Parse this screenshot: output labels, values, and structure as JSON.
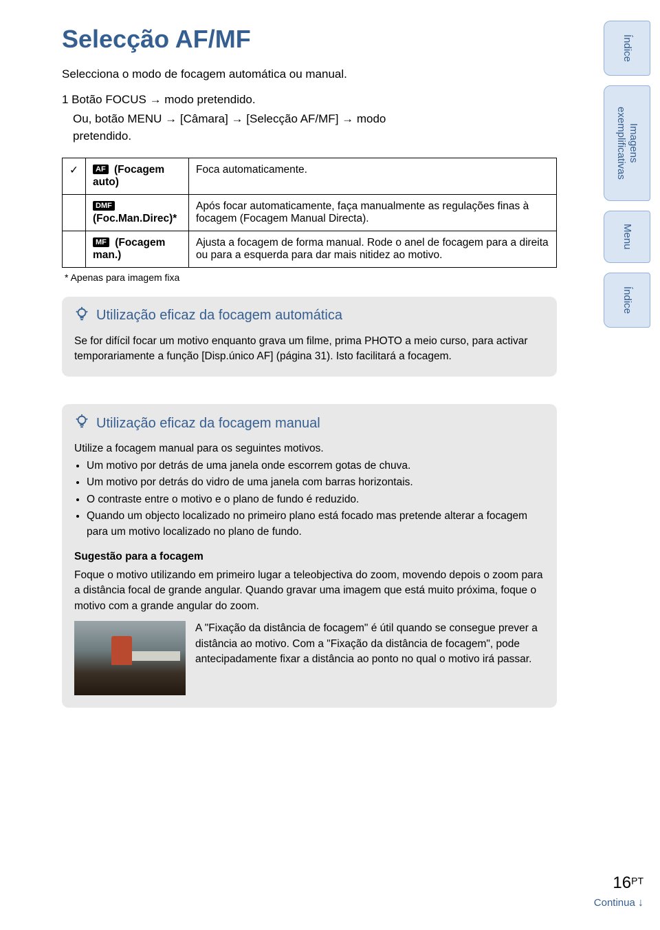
{
  "title": "Selecção AF/MF",
  "intro": "Selecciona o modo de focagem automática ou manual.",
  "step_line1_prefix": "1 Botão FOCUS ",
  "step_line1_suffix": " modo pretendido.",
  "step_line2_a": "Ou, botão MENU ",
  "step_line2_b": " [Câmara] ",
  "step_line2_c": " [Selecção AF/MF] ",
  "step_line2_d": " modo",
  "step_line3": "pretendido.",
  "arrow_glyph": "→",
  "check_glyph": "✓",
  "table": {
    "rows": [
      {
        "check": true,
        "badge": "AF",
        "mode": "(Focagem auto)",
        "desc": "Foca automaticamente."
      },
      {
        "check": false,
        "badge": "DMF",
        "mode": "(Foc.Man.Direc)*",
        "desc": "Após focar automaticamente, faça manualmente as regulações finas à focagem (Focagem Manual Directa)."
      },
      {
        "check": false,
        "badge": "MF",
        "mode": "(Focagem man.)",
        "desc": "Ajusta a focagem de forma manual. Rode o anel de focagem para a direita ou para a esquerda para dar mais nitidez ao motivo."
      }
    ]
  },
  "footnote": "*  Apenas para imagem fixa",
  "tip1": {
    "heading": "Utilização eficaz da focagem automática",
    "body": "Se for difícil focar um motivo enquanto grava um filme, prima PHOTO a meio curso, para activar temporariamente a função [Disp.único AF] (página 31). Isto facilitará a focagem."
  },
  "tip2": {
    "heading": "Utilização eficaz da focagem manual",
    "intro": "Utilize a focagem manual para os seguintes motivos.",
    "bullets": [
      "Um motivo por detrás de uma janela onde escorrem gotas de chuva.",
      "Um motivo por detrás do vidro de uma janela com barras horizontais.",
      "O contraste entre o motivo e o plano de fundo é reduzido.",
      "Quando um objecto localizado no primeiro plano está focado mas pretende alterar a focagem para um motivo localizado no plano de fundo."
    ],
    "sub_heading": "Sugestão para a focagem",
    "sub_body": "Foque o motivo utilizando em primeiro lugar a teleobjectiva do zoom, movendo depois o zoom para a distância focal de grande angular. Quando gravar uma imagem que está muito próxima, foque o motivo com a grande angular do zoom.",
    "img_caption": "A \"Fixação da distância de focagem\" é útil quando se consegue prever a distância ao motivo. Com a \"Fixação da distância de focagem\", pode antecipadamente fixar a distância ao ponto no qual o motivo irá passar."
  },
  "side_tabs": {
    "t1": "Índice",
    "t2": "Imagens exemplificativas",
    "t3": "Menu",
    "t4": "Índice"
  },
  "footer": {
    "page_num": "16",
    "page_suffix": "PT",
    "cont_label": "Continua ",
    "cont_arrow": "↓"
  },
  "colors": {
    "heading": "#365f91",
    "tab_fill": "#d9e5f3",
    "tab_border": "#95b3d7",
    "tip_bg": "#e8e8e8"
  }
}
